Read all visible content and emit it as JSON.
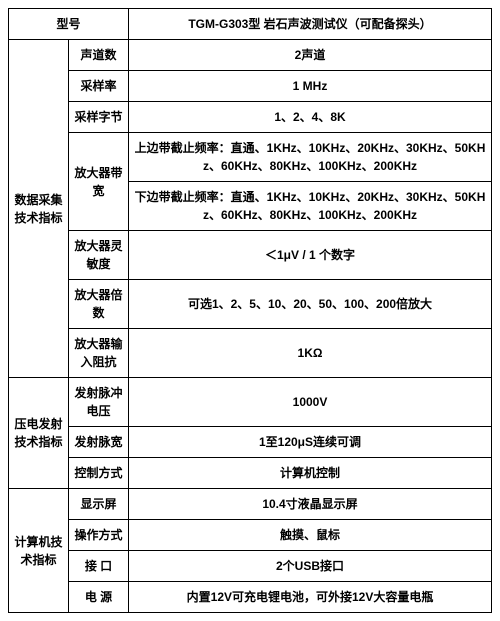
{
  "header": {
    "col1": "型号",
    "col2": "TGM-G303型 岩石声波测试仪（可配备探头）"
  },
  "sections": [
    {
      "label": "数据采集技术指标",
      "rows": [
        {
          "name": "声道数",
          "value": "2声道"
        },
        {
          "name": "采样率",
          "value": "1 MHz"
        },
        {
          "name": "采样字节",
          "value": "1、2、4、8K"
        },
        {
          "name": "放大器带宽",
          "valueUpper": "上边带截止频率：直通、1KHz、10KHz、20KHz、30KHz、50KHz、60KHz、80KHz、100KHz、200KHz",
          "valueLower": "下边带截止频率：直通、1KHz、10KHz、20KHz、30KHz、50KHz、60KHz、80KHz、100KHz、200KHz"
        },
        {
          "name": "放大器灵敏度",
          "value": "＜1μV / 1 个数字"
        },
        {
          "name": "放大器倍数",
          "value": "可选1、2、5、10、20、50、100、200倍放大"
        },
        {
          "name": "放大器输入阻抗",
          "value": "1KΩ"
        }
      ]
    },
    {
      "label": "压电发射技术指标",
      "rows": [
        {
          "name": "发射脉冲电压",
          "value": "1000V"
        },
        {
          "name": "发射脉宽",
          "value": "1至120μS连续可调"
        },
        {
          "name": "控制方式",
          "value": "计算机控制"
        }
      ]
    },
    {
      "label": "计算机技术指标",
      "rows": [
        {
          "name": "显示屏",
          "value": "10.4寸液晶显示屏"
        },
        {
          "name": "操作方式",
          "value": "触摸、鼠标"
        },
        {
          "name": "接 口",
          "value": "2个USB接口"
        },
        {
          "name": "电 源",
          "value": "内置12V可充电锂电池，可外接12V大容量电瓶"
        }
      ]
    }
  ]
}
